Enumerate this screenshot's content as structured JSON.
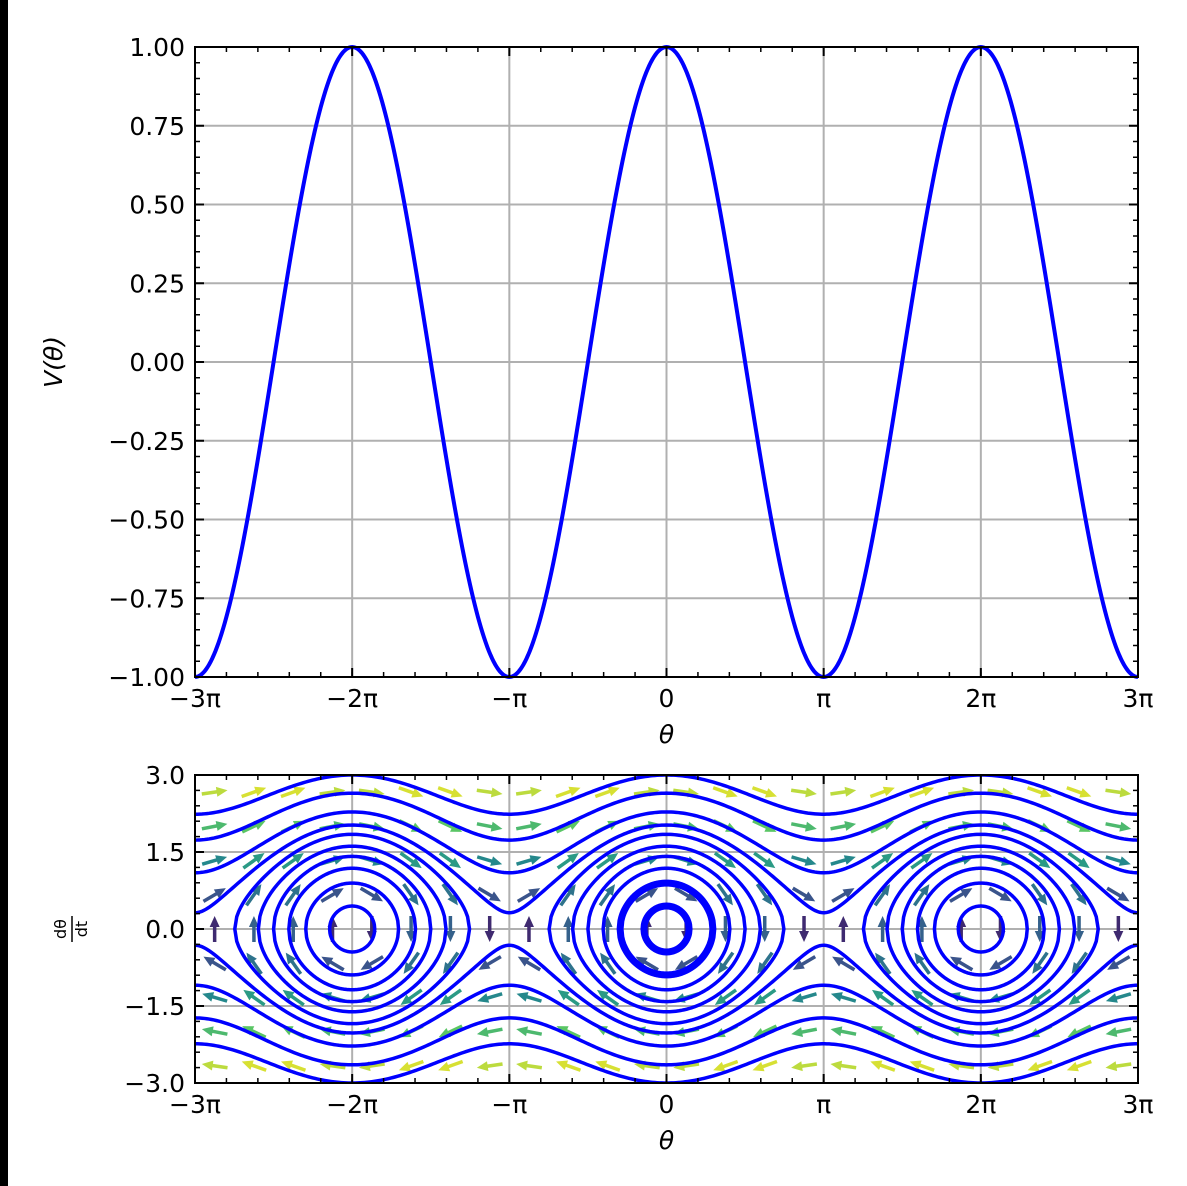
{
  "chart_data": [
    {
      "type": "line",
      "function": "cos(theta)",
      "xlabel": "θ",
      "ylabel": "V(θ)",
      "xlim": [
        -9.42478,
        9.42478
      ],
      "ylim": [
        -1.0,
        1.0
      ],
      "x_ticks": [
        {
          "value": -9.42478,
          "label": "−3π"
        },
        {
          "value": -6.28319,
          "label": "−2π"
        },
        {
          "value": -3.14159,
          "label": "−π"
        },
        {
          "value": 0,
          "label": "0"
        },
        {
          "value": 3.14159,
          "label": "π"
        },
        {
          "value": 6.28319,
          "label": "2π"
        },
        {
          "value": 9.42478,
          "label": "3π"
        }
      ],
      "y_ticks": [
        {
          "value": 1.0,
          "label": "1.00"
        },
        {
          "value": 0.75,
          "label": "0.75"
        },
        {
          "value": 0.5,
          "label": "0.50"
        },
        {
          "value": 0.25,
          "label": "0.25"
        },
        {
          "value": 0.0,
          "label": "0.00"
        },
        {
          "value": -0.25,
          "label": "−0.25"
        },
        {
          "value": -0.5,
          "label": "−0.50"
        },
        {
          "value": -0.75,
          "label": "−0.75"
        },
        {
          "value": -1.0,
          "label": "−1.00"
        }
      ],
      "grid": true,
      "series_color": "#0000ff"
    },
    {
      "type": "streamplot",
      "system": "dtheta/dt = omega, domega/dt = -sin(theta)",
      "xlabel": "θ",
      "ylabel": "dθ/dt",
      "ylabel_numerator": "dθ",
      "ylabel_denominator": "dt",
      "xlim": [
        -9.42478,
        9.42478
      ],
      "ylim": [
        -3.0,
        3.0
      ],
      "x_ticks": [
        {
          "value": -9.42478,
          "label": "−3π"
        },
        {
          "value": -6.28319,
          "label": "−2π"
        },
        {
          "value": -3.14159,
          "label": "−π"
        },
        {
          "value": 0,
          "label": "0"
        },
        {
          "value": 3.14159,
          "label": "π"
        },
        {
          "value": 6.28319,
          "label": "2π"
        },
        {
          "value": 9.42478,
          "label": "3π"
        }
      ],
      "y_ticks": [
        {
          "value": 3.0,
          "label": "3.0"
        },
        {
          "value": 1.5,
          "label": "1.5"
        },
        {
          "value": 0.0,
          "label": "0.0"
        },
        {
          "value": -1.5,
          "label": "−1.5"
        },
        {
          "value": -3.0,
          "label": "−3.0"
        }
      ],
      "grid": true,
      "orbit_energies": [
        -0.9,
        -0.6,
        -0.3,
        0.0,
        0.3,
        0.7,
        1.05,
        1.6,
        2.5,
        3.5
      ],
      "orbit_centers": [
        -6.28319,
        0,
        6.28319
      ],
      "orbit_color": "#0000ff",
      "arrow_colormap": "viridis"
    }
  ]
}
